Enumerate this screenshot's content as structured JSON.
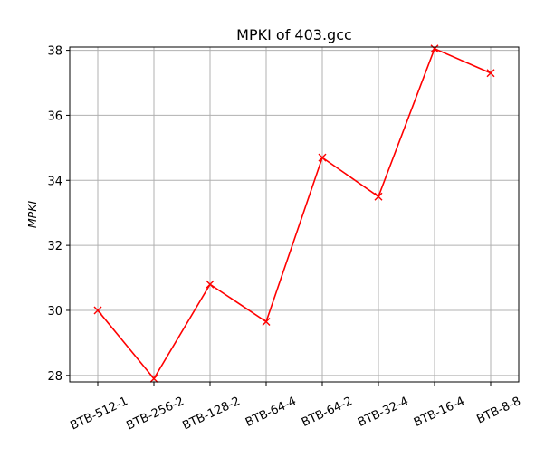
{
  "chart_data": {
    "type": "line",
    "title": "MPKI of 403.gcc",
    "xlabel": "",
    "ylabel": "MPKI",
    "categories": [
      "BTB-512-1",
      "BTB-256-2",
      "BTB-128-2",
      "BTB-64-4",
      "BTB-64-2",
      "BTB-32-4",
      "BTB-16-4",
      "BTB-8-8"
    ],
    "series": [
      {
        "values": [
          30.0,
          27.9,
          30.8,
          29.65,
          34.7,
          33.5,
          38.05,
          37.3
        ],
        "color": "#ff0000",
        "marker": "x"
      }
    ],
    "ylim": [
      27.8,
      38.1
    ],
    "yticks": [
      28,
      30,
      32,
      34,
      36,
      38
    ],
    "grid": true,
    "legend": "none"
  }
}
